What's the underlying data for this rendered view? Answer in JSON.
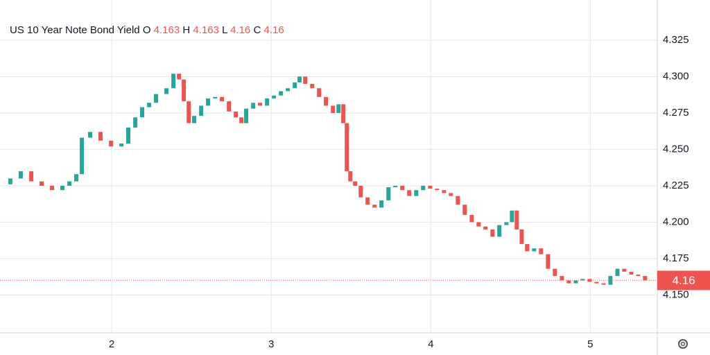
{
  "chart_data": {
    "type": "candlestick",
    "title": "US 10 Year Note Bond Yield",
    "ohlc": [
      {
        "label": "O",
        "value": 4.163
      },
      {
        "label": "H",
        "value": 4.163
      },
      {
        "label": "L",
        "value": 4.16
      },
      {
        "label": "C",
        "value": 4.16
      }
    ],
    "last_price": 4.16,
    "up_color": "#26a69a",
    "down_color": "#ef5350",
    "xlim": [
      1.3,
      5.42
    ],
    "xticks": [
      2,
      3,
      4,
      5
    ],
    "ylim": [
      4.124,
      4.3526
    ],
    "yticks": [
      {
        "value": 4.15,
        "label": "4.150"
      },
      {
        "value": 4.175,
        "label": "4.175"
      },
      {
        "value": 4.2,
        "label": "4.200"
      },
      {
        "value": 4.225,
        "label": "4.225"
      },
      {
        "value": 4.25,
        "label": "4.250"
      },
      {
        "value": 4.275,
        "label": "4.275"
      },
      {
        "value": 4.3,
        "label": "4.300"
      },
      {
        "value": 4.325,
        "label": "4.325"
      }
    ],
    "grid": true,
    "x": [
      1.365,
      1.43,
      1.496,
      1.561,
      1.626,
      1.691,
      1.735,
      1.778,
      1.813,
      1.865,
      1.93,
      1.996,
      2.061,
      2.104,
      2.148,
      2.191,
      2.235,
      2.278,
      2.343,
      2.387,
      2.422,
      2.452,
      2.483,
      2.517,
      2.561,
      2.604,
      2.648,
      2.691,
      2.735,
      2.778,
      2.813,
      2.843,
      2.887,
      2.93,
      2.974,
      3.017,
      3.061,
      3.104,
      3.148,
      3.178,
      3.213,
      3.257,
      3.3,
      3.343,
      3.387,
      3.422,
      3.452,
      3.474,
      3.496,
      3.526,
      3.561,
      3.604,
      3.648,
      3.691,
      3.735,
      3.778,
      3.822,
      3.865,
      3.909,
      3.952,
      3.996,
      4.039,
      4.083,
      4.126,
      4.17,
      4.213,
      4.257,
      4.3,
      4.343,
      4.387,
      4.43,
      4.474,
      4.509,
      4.539,
      4.57,
      4.604,
      4.648,
      4.691,
      4.735,
      4.778,
      4.822,
      4.865,
      4.909,
      4.952,
      4.996,
      5.039,
      5.083,
      5.126,
      5.17,
      5.213,
      5.257,
      5.3,
      5.343
    ],
    "open": [
      4.226,
      4.23,
      4.235,
      4.228,
      4.225,
      4.222,
      4.225,
      4.228,
      4.233,
      4.258,
      4.262,
      4.256,
      4.252,
      4.254,
      4.265,
      4.272,
      4.279,
      4.282,
      4.288,
      4.292,
      4.302,
      4.298,
      4.283,
      4.268,
      4.273,
      4.28,
      4.285,
      4.286,
      4.283,
      4.276,
      4.272,
      4.268,
      4.278,
      4.282,
      4.28,
      4.285,
      4.287,
      4.29,
      4.292,
      4.296,
      4.3,
      4.295,
      4.292,
      4.286,
      4.28,
      4.275,
      4.281,
      4.268,
      4.235,
      4.228,
      4.225,
      4.217,
      4.212,
      4.21,
      4.215,
      4.224,
      4.225,
      4.222,
      4.218,
      4.222,
      4.225,
      4.223,
      4.222,
      4.22,
      4.218,
      4.212,
      4.205,
      4.2,
      4.197,
      4.195,
      4.19,
      4.198,
      4.2,
      4.208,
      4.195,
      4.185,
      4.18,
      4.182,
      4.178,
      4.168,
      4.163,
      4.16,
      4.158,
      4.16,
      4.161,
      4.159,
      4.158,
      4.157,
      4.163,
      4.168,
      4.166,
      4.164,
      4.163
    ],
    "close": [
      4.23,
      4.235,
      4.228,
      4.225,
      4.222,
      4.225,
      4.228,
      4.233,
      4.258,
      4.262,
      4.256,
      4.252,
      4.254,
      4.265,
      4.272,
      4.279,
      4.282,
      4.288,
      4.292,
      4.302,
      4.298,
      4.283,
      4.268,
      4.273,
      4.28,
      4.285,
      4.286,
      4.283,
      4.276,
      4.272,
      4.268,
      4.278,
      4.282,
      4.28,
      4.285,
      4.287,
      4.29,
      4.292,
      4.296,
      4.3,
      4.295,
      4.292,
      4.286,
      4.28,
      4.275,
      4.281,
      4.268,
      4.235,
      4.228,
      4.225,
      4.217,
      4.212,
      4.21,
      4.215,
      4.224,
      4.225,
      4.222,
      4.218,
      4.222,
      4.225,
      4.223,
      4.222,
      4.22,
      4.218,
      4.212,
      4.205,
      4.2,
      4.197,
      4.195,
      4.19,
      4.198,
      4.2,
      4.208,
      4.195,
      4.185,
      4.18,
      4.182,
      4.178,
      4.168,
      4.163,
      4.16,
      4.158,
      4.16,
      4.161,
      4.159,
      4.158,
      4.157,
      4.163,
      4.168,
      4.166,
      4.164,
      4.163,
      4.16
    ]
  }
}
